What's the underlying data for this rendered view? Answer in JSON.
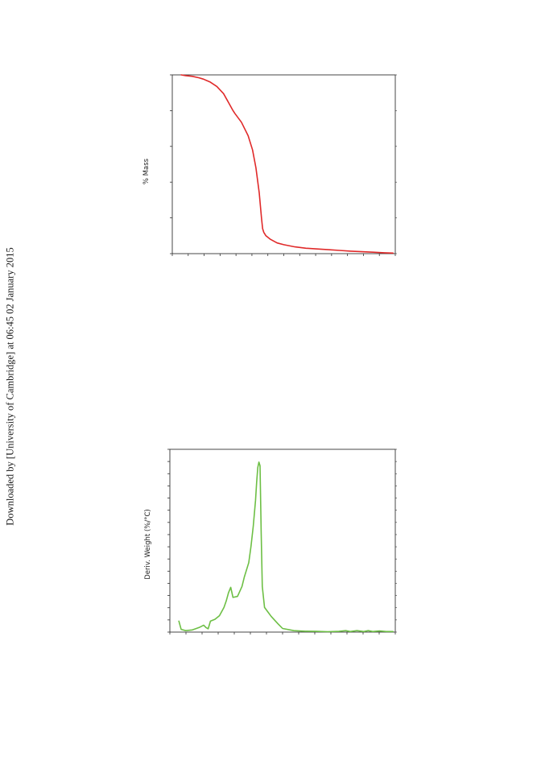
{
  "page": {
    "watermark": "Downloaded by [University of Cambridge] at 06:45 02 January 2015"
  },
  "chart_data": [
    {
      "type": "line",
      "ylabel": "% Mass",
      "xlabel": "",
      "title": "",
      "color": "#e02a2a",
      "grid": false,
      "legend": "none",
      "xlim": [
        0,
        100
      ],
      "ylim": [
        0,
        100
      ],
      "x_ticks": 14,
      "y_ticks": 5,
      "series": [
        {
          "x": [
            4,
            6,
            9,
            12,
            14,
            17,
            20,
            23,
            25,
            27,
            28,
            31,
            34,
            36,
            37.5,
            39,
            40,
            40.5,
            41,
            42,
            44,
            47,
            50,
            55,
            60,
            65,
            70,
            75,
            80,
            85,
            90,
            95,
            99
          ],
          "y": [
            100,
            99.6,
            99.2,
            98.4,
            97.6,
            96,
            93.5,
            89.5,
            85,
            80.5,
            78.5,
            73.5,
            66,
            58,
            48,
            34,
            20,
            14,
            12,
            10,
            8,
            6,
            5,
            3.8,
            3,
            2.6,
            2.2,
            1.8,
            1.4,
            1.1,
            0.8,
            0.5,
            0.3
          ]
        }
      ]
    },
    {
      "type": "line",
      "ylabel": "Deriv. Weight (%/°C)",
      "xlabel": "",
      "title": "",
      "color": "#6dbf45",
      "grid": false,
      "legend": "none",
      "xlim": [
        0,
        100
      ],
      "ylim": [
        0,
        100
      ],
      "x_ticks": 14,
      "y_ticks": 15,
      "series": [
        {
          "x": [
            4,
            5,
            7,
            10,
            13,
            15,
            16,
            17,
            18,
            20,
            22,
            24,
            25,
            26,
            27,
            28,
            30,
            32,
            33,
            35,
            36,
            37,
            38,
            38.5,
            39,
            39.5,
            40,
            40.5,
            41,
            42,
            45,
            48,
            50,
            55,
            60,
            65,
            70,
            75,
            78,
            80,
            83,
            86,
            88,
            90,
            93,
            96,
            99
          ],
          "y": [
            6,
            1.5,
            0.8,
            1.2,
            2.5,
            3.8,
            2.5,
            1.8,
            6,
            7,
            9,
            13.5,
            17,
            21.5,
            24.5,
            19,
            19.5,
            25,
            30,
            38,
            47,
            58,
            72,
            82,
            90,
            93,
            91,
            55,
            25,
            13.5,
            8.5,
            4.5,
            2,
            0.8,
            0.5,
            0.4,
            0.2,
            0.4,
            0.8,
            0.3,
            0.8,
            0.3,
            0.8,
            0.3,
            0.6,
            0.3,
            0.3
          ]
        }
      ]
    }
  ]
}
